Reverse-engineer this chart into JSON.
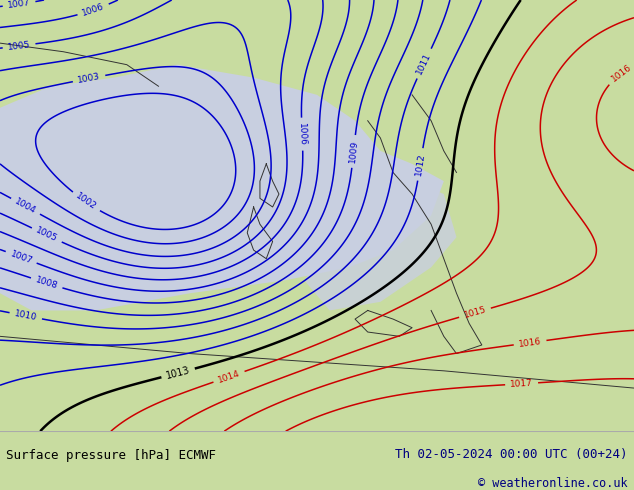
{
  "title_left": "Surface pressure [hPa] ECMWF",
  "title_right": "Th 02-05-2024 00:00 UTC (00+24)",
  "copyright": "© weatheronline.co.uk",
  "bg_color": "#c8dca0",
  "sea_color": "#c8cfe0",
  "bottom_bar_color": "#ffffff",
  "blue_contour_color": "#0000cc",
  "black_contour_color": "#000000",
  "red_contour_color": "#cc0000",
  "font_color_left": "#000000",
  "font_color_right": "#000080",
  "font_color_copyright": "#000080",
  "figsize": [
    6.34,
    4.9
  ],
  "dpi": 100
}
